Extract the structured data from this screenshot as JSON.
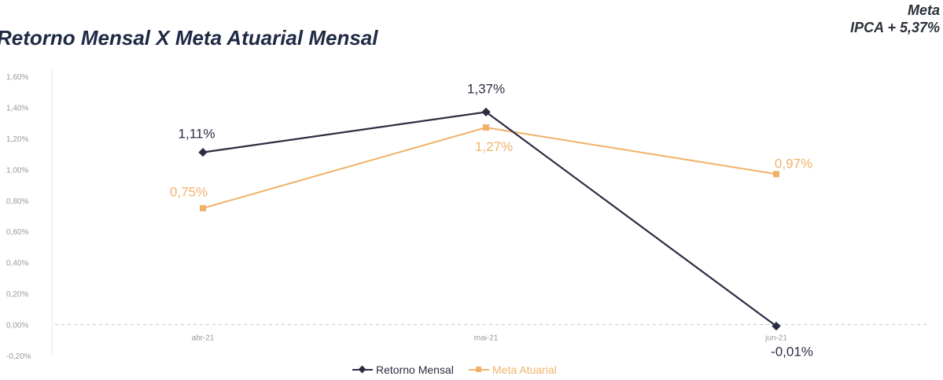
{
  "chart_data": {
    "type": "line",
    "title": "Retorno Mensal X Meta Atuarial Mensal",
    "categories": [
      "abr-21",
      "mai-21",
      "jun-21"
    ],
    "series": [
      {
        "name": "Retorno Mensal",
        "color": "#2b2d42",
        "values": [
          1.11,
          1.37,
          -0.01
        ],
        "labels": [
          "1,11%",
          "1,37%",
          "-0,01%"
        ]
      },
      {
        "name": "Meta Atuarial",
        "color": "#f0b26a",
        "values": [
          0.75,
          1.27,
          0.97
        ],
        "labels": [
          "0,75%",
          "1,27%",
          "0,97%"
        ]
      }
    ],
    "ylim": [
      -0.2,
      1.6
    ],
    "yticks": [
      "-0,20%",
      "0,00%",
      "0,20%",
      "0,40%",
      "0,60%",
      "0,80%",
      "1,00%",
      "1,20%",
      "1,40%",
      "1,60%"
    ],
    "legend": "bottom"
  },
  "meta": {
    "line1": "Meta",
    "line2": "IPCA + 5,37%"
  }
}
